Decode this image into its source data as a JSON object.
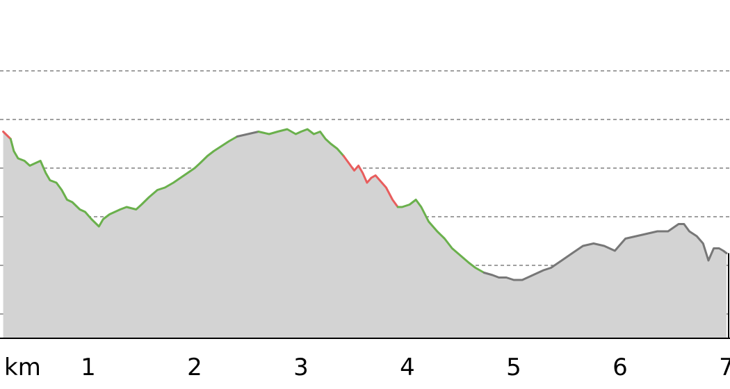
{
  "chart_data": {
    "type": "area",
    "title": "",
    "xlabel": "",
    "ylabel": "",
    "x_unit": "km",
    "xlim": [
      0.2,
      7.0
    ],
    "ylim": [
      0,
      7
    ],
    "x_ticks": [
      {
        "value": 1,
        "label": "1"
      },
      {
        "value": 2,
        "label": "2"
      },
      {
        "value": 3,
        "label": "3"
      },
      {
        "value": 4,
        "label": "4"
      },
      {
        "value": 5,
        "label": "5"
      },
      {
        "value": 6,
        "label": "6"
      },
      {
        "value": 7,
        "label": "7"
      }
    ],
    "y_gridlines": [
      0.5,
      1.5,
      2.5,
      3.5,
      4.5,
      5.5
    ],
    "grid": true,
    "legend": "none",
    "colors": {
      "area_fill": "#d3d3d3",
      "flat": "#6ab04c",
      "steep": "#e85d5d",
      "unknown": "#777777"
    },
    "series": [
      {
        "values": [
          [
            0.2,
            4.25
          ],
          [
            0.27,
            4.1
          ],
          [
            0.3,
            3.85
          ],
          [
            0.34,
            3.7
          ],
          [
            0.4,
            3.65
          ],
          [
            0.45,
            3.55
          ],
          [
            0.5,
            3.6
          ],
          [
            0.55,
            3.65
          ],
          [
            0.6,
            3.4
          ],
          [
            0.64,
            3.25
          ],
          [
            0.7,
            3.2
          ],
          [
            0.75,
            3.05
          ],
          [
            0.8,
            2.85
          ],
          [
            0.85,
            2.8
          ],
          [
            0.92,
            2.65
          ],
          [
            0.97,
            2.6
          ],
          [
            1.03,
            2.45
          ],
          [
            1.1,
            2.3
          ],
          [
            1.14,
            2.45
          ],
          [
            1.2,
            2.55
          ],
          [
            1.25,
            2.6
          ],
          [
            1.3,
            2.65
          ],
          [
            1.36,
            2.7
          ],
          [
            1.45,
            2.65
          ],
          [
            1.5,
            2.75
          ],
          [
            1.57,
            2.9
          ],
          [
            1.65,
            3.05
          ],
          [
            1.72,
            3.1
          ],
          [
            1.8,
            3.2
          ],
          [
            1.9,
            3.35
          ],
          [
            2.0,
            3.5
          ],
          [
            2.05,
            3.6
          ],
          [
            2.12,
            3.75
          ],
          [
            2.18,
            3.85
          ],
          [
            2.25,
            3.95
          ],
          [
            2.32,
            4.05
          ],
          [
            2.4,
            4.15
          ],
          [
            2.5,
            4.2
          ],
          [
            2.6,
            4.25
          ],
          [
            2.7,
            4.2
          ],
          [
            2.78,
            4.25
          ],
          [
            2.87,
            4.3
          ],
          [
            2.95,
            4.2
          ],
          [
            3.0,
            4.25
          ],
          [
            3.06,
            4.3
          ],
          [
            3.12,
            4.2
          ],
          [
            3.18,
            4.25
          ],
          [
            3.23,
            4.1
          ],
          [
            3.28,
            4.0
          ],
          [
            3.34,
            3.9
          ],
          [
            3.4,
            3.75
          ],
          [
            3.45,
            3.6
          ],
          [
            3.5,
            3.45
          ],
          [
            3.54,
            3.55
          ],
          [
            3.58,
            3.4
          ],
          [
            3.62,
            3.2
          ],
          [
            3.66,
            3.3
          ],
          [
            3.7,
            3.35
          ],
          [
            3.74,
            3.25
          ],
          [
            3.8,
            3.1
          ],
          [
            3.86,
            2.85
          ],
          [
            3.91,
            2.7
          ],
          [
            3.95,
            2.7
          ],
          [
            4.02,
            2.75
          ],
          [
            4.08,
            2.85
          ],
          [
            4.13,
            2.7
          ],
          [
            4.2,
            2.4
          ],
          [
            4.28,
            2.2
          ],
          [
            4.35,
            2.05
          ],
          [
            4.42,
            1.85
          ],
          [
            4.5,
            1.7
          ],
          [
            4.58,
            1.55
          ],
          [
            4.64,
            1.45
          ],
          [
            4.72,
            1.35
          ],
          [
            4.8,
            1.3
          ],
          [
            4.86,
            1.25
          ],
          [
            4.93,
            1.25
          ],
          [
            5.0,
            1.2
          ],
          [
            5.08,
            1.2
          ],
          [
            5.18,
            1.3
          ],
          [
            5.28,
            1.4
          ],
          [
            5.35,
            1.45
          ],
          [
            5.45,
            1.6
          ],
          [
            5.55,
            1.75
          ],
          [
            5.65,
            1.9
          ],
          [
            5.75,
            1.95
          ],
          [
            5.85,
            1.9
          ],
          [
            5.95,
            1.8
          ],
          [
            6.05,
            2.05
          ],
          [
            6.15,
            2.1
          ],
          [
            6.25,
            2.15
          ],
          [
            6.35,
            2.2
          ],
          [
            6.45,
            2.2
          ],
          [
            6.55,
            2.35
          ],
          [
            6.6,
            2.35
          ],
          [
            6.65,
            2.2
          ],
          [
            6.72,
            2.1
          ],
          [
            6.78,
            1.95
          ],
          [
            6.83,
            1.6
          ],
          [
            6.88,
            1.85
          ],
          [
            6.93,
            1.85
          ],
          [
            6.97,
            1.8
          ],
          [
            7.0,
            1.75
          ]
        ],
        "colored_ranges": [
          {
            "from": 0.2,
            "to": 0.27,
            "category": "steep"
          },
          {
            "from": 0.27,
            "to": 2.4,
            "category": "flat"
          },
          {
            "from": 2.4,
            "to": 2.6,
            "category": "unknown"
          },
          {
            "from": 2.6,
            "to": 3.4,
            "category": "flat"
          },
          {
            "from": 3.4,
            "to": 3.91,
            "category": "steep"
          },
          {
            "from": 3.91,
            "to": 4.72,
            "category": "flat"
          },
          {
            "from": 4.72,
            "to": 7.0,
            "category": "unknown"
          }
        ]
      }
    ]
  }
}
